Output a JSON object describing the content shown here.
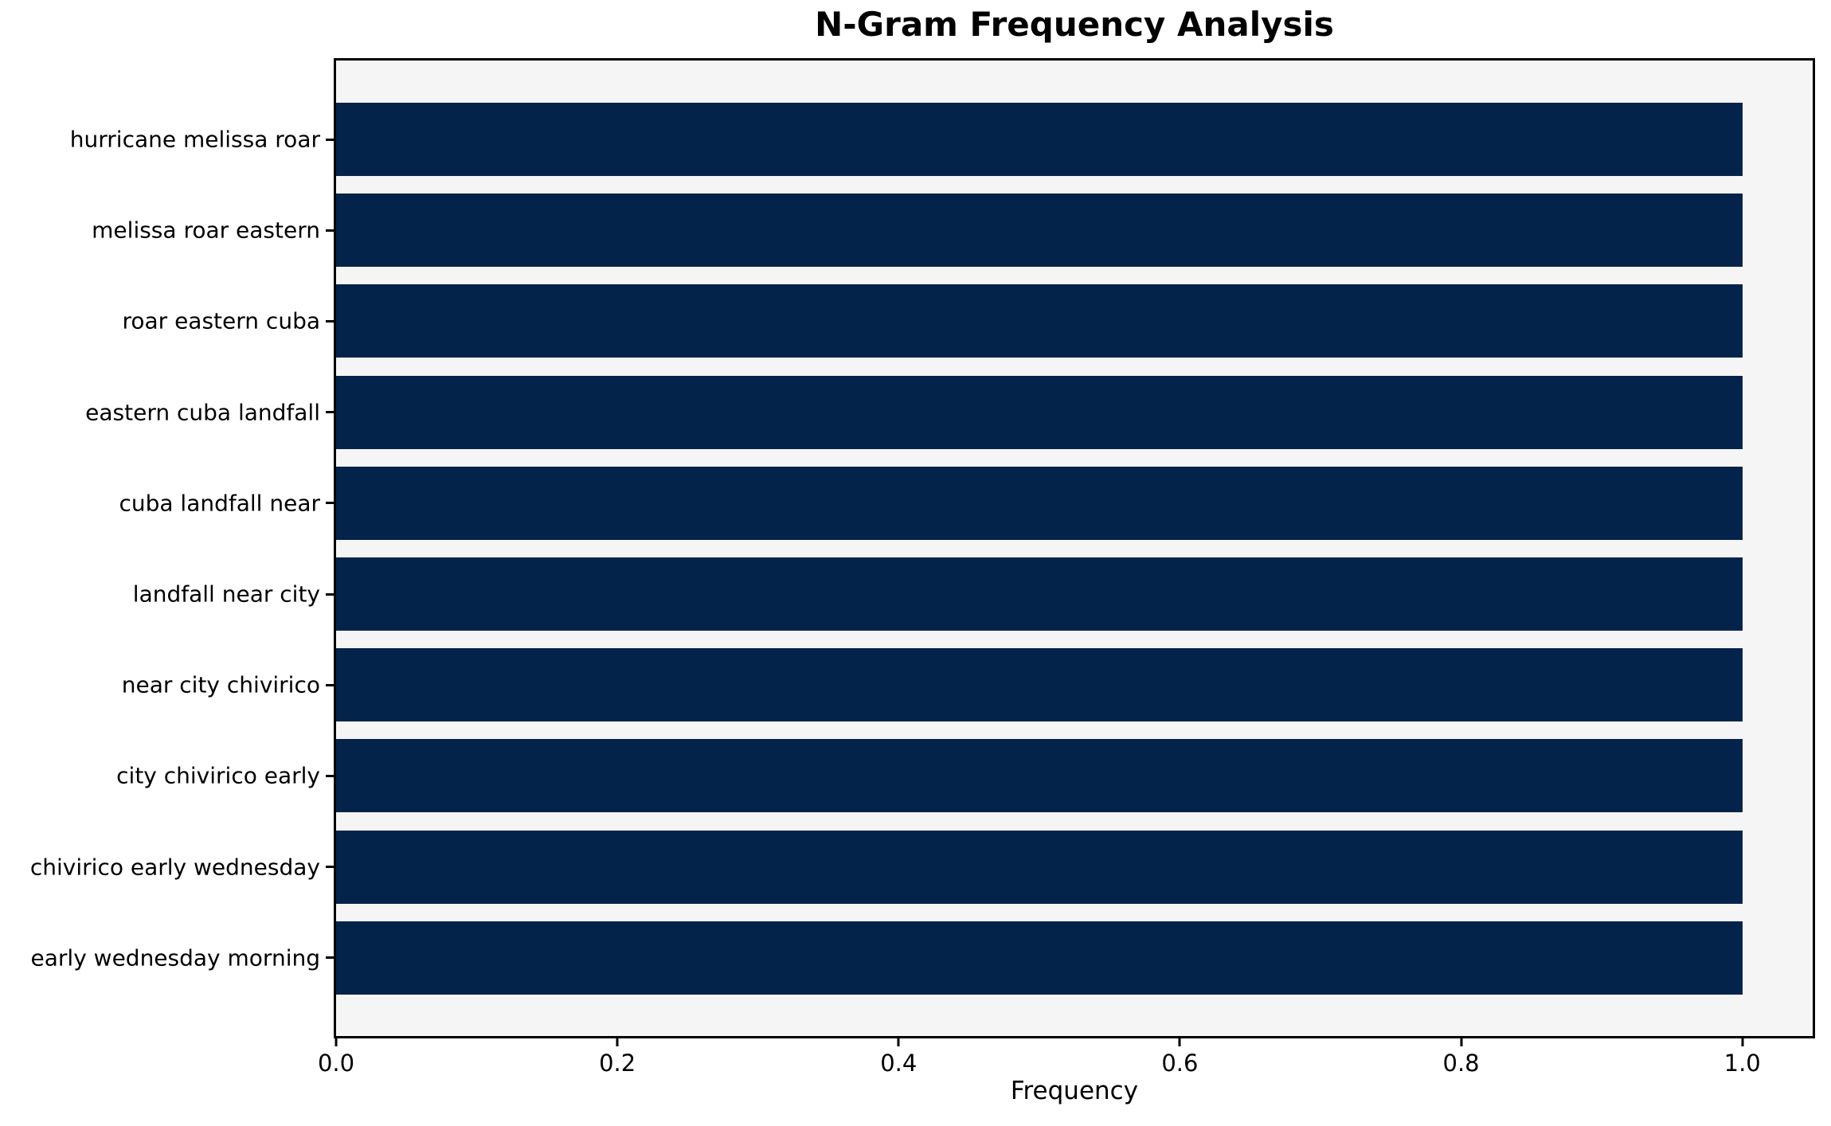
{
  "chart_data": {
    "type": "bar",
    "orientation": "horizontal",
    "title": "N-Gram Frequency Analysis",
    "xlabel": "Frequency",
    "ylabel": "",
    "categories": [
      "hurricane melissa roar",
      "melissa roar eastern",
      "roar eastern cuba",
      "eastern cuba landfall",
      "cuba landfall near",
      "landfall near city",
      "near city chivirico",
      "city chivirico early",
      "chivirico early wednesday",
      "early wednesday morning"
    ],
    "values": [
      1.0,
      1.0,
      1.0,
      1.0,
      1.0,
      1.0,
      1.0,
      1.0,
      1.0,
      1.0
    ],
    "x_tick_values": [
      0.0,
      0.2,
      0.4,
      0.6,
      0.8,
      1.0
    ],
    "x_tick_labels": [
      "0.0",
      "0.2",
      "0.4",
      "0.6",
      "0.8",
      "1.0"
    ],
    "xlim": [
      0,
      1.05
    ],
    "grid": false,
    "legend": null,
    "colors": {
      "bar": "#04234b",
      "plot_background": "#f5f5f6",
      "figure_background": "#ffffff",
      "spine": "#000000",
      "text": "#000000"
    }
  }
}
